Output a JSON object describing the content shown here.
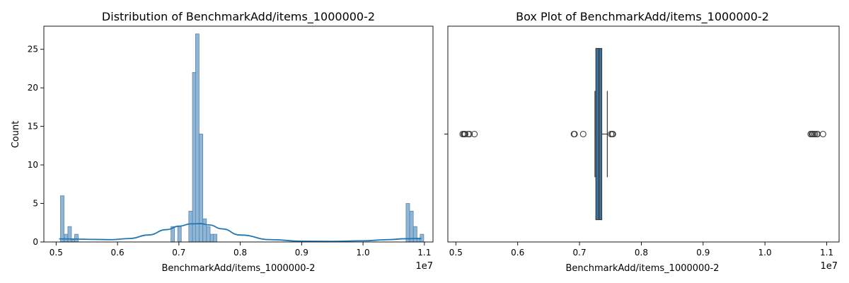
{
  "chart_data": [
    {
      "type": "bar",
      "subtype": "histogram-with-kde",
      "title": "Distribution of BenchmarkAdd/items_1000000-2",
      "xlabel": "BenchmarkAdd/items_1000000-2",
      "ylabel": "Count",
      "x_offset_label": "1e7",
      "xlim": [
        0.48,
        1.114
      ],
      "ylim": [
        0,
        28
      ],
      "xticks": [
        0.5,
        0.6,
        0.7,
        0.8,
        0.9,
        1.0,
        1.1
      ],
      "xtick_labels": [
        "0.5",
        "0.6",
        "0.7",
        "0.8",
        "0.9",
        "1.0",
        "1.1"
      ],
      "yticks": [
        0,
        5,
        10,
        15,
        20,
        25
      ],
      "ytick_labels": [
        "0",
        "5",
        "10",
        "15",
        "20",
        "25"
      ],
      "bin_width": 0.0058,
      "bins": [
        {
          "x": 0.51,
          "count": 6
        },
        {
          "x": 0.516,
          "count": 1
        },
        {
          "x": 0.522,
          "count": 2
        },
        {
          "x": 0.528,
          "count": 0.3
        },
        {
          "x": 0.533,
          "count": 1
        },
        {
          "x": 0.69,
          "count": 2
        },
        {
          "x": 0.701,
          "count": 2
        },
        {
          "x": 0.719,
          "count": 4
        },
        {
          "x": 0.725,
          "count": 22
        },
        {
          "x": 0.73,
          "count": 27
        },
        {
          "x": 0.736,
          "count": 14
        },
        {
          "x": 0.742,
          "count": 3
        },
        {
          "x": 0.748,
          "count": 2
        },
        {
          "x": 0.754,
          "count": 1
        },
        {
          "x": 0.759,
          "count": 1
        },
        {
          "x": 1.073,
          "count": 5
        },
        {
          "x": 1.079,
          "count": 4
        },
        {
          "x": 1.085,
          "count": 2
        },
        {
          "x": 1.091,
          "count": 0.5
        },
        {
          "x": 1.096,
          "count": 1
        }
      ],
      "kde": {
        "x": [
          0.505,
          0.53,
          0.56,
          0.59,
          0.62,
          0.65,
          0.68,
          0.7,
          0.72,
          0.735,
          0.75,
          0.77,
          0.8,
          0.85,
          0.9,
          0.95,
          1.0,
          1.04,
          1.07,
          1.085,
          1.095
        ],
        "y": [
          0.4,
          0.38,
          0.33,
          0.3,
          0.45,
          0.9,
          1.6,
          2.05,
          2.35,
          2.38,
          2.2,
          1.7,
          0.9,
          0.3,
          0.1,
          0.08,
          0.15,
          0.3,
          0.42,
          0.44,
          0.44
        ]
      },
      "grid": false,
      "legend": "none",
      "colors": {
        "bar_fill": "#8fb6d6",
        "bar_edge": "#5b87ab",
        "kde": "#1f77b4"
      }
    },
    {
      "type": "box",
      "title": "Box Plot of BenchmarkAdd/items_1000000-2",
      "xlabel": "BenchmarkAdd/items_1000000-2",
      "x_offset_label": "1e7",
      "xlim": [
        0.487,
        1.12
      ],
      "xticks": [
        0.5,
        0.6,
        0.7,
        0.8,
        0.9,
        1.0,
        1.1
      ],
      "xtick_labels": [
        "0.5",
        "0.6",
        "0.7",
        "0.8",
        "0.9",
        "1.0",
        "1.1"
      ],
      "box": {
        "whisker_low": 0.725,
        "q1": 0.7265,
        "median": 0.7315,
        "q3": 0.736,
        "whisker_high": 0.745
      },
      "outliers": [
        0.511,
        0.513,
        0.514,
        0.515,
        0.52,
        0.522,
        0.53,
        0.691,
        0.692,
        0.706,
        0.751,
        0.753,
        0.754,
        1.074,
        1.076,
        1.077,
        1.079,
        1.081,
        1.084,
        1.085,
        1.094
      ],
      "grid": false,
      "legend": "none",
      "colors": {
        "box_fill": "#3a73a0",
        "box_edge": "#3b3b3b",
        "outlier_edge": "#3b3b3b"
      }
    }
  ]
}
